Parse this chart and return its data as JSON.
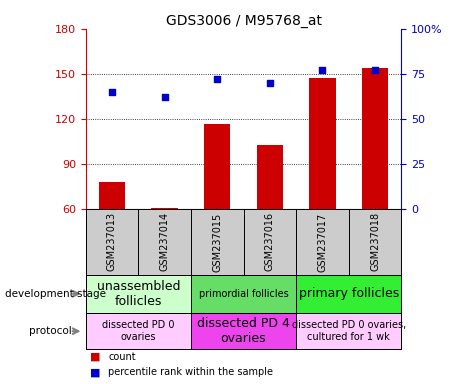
{
  "title": "GDS3006 / M95768_at",
  "samples": [
    "GSM237013",
    "GSM237014",
    "GSM237015",
    "GSM237016",
    "GSM237017",
    "GSM237018"
  ],
  "bar_values": [
    78,
    61,
    117,
    103,
    147,
    154
  ],
  "dot_values_pct": [
    65,
    62,
    72,
    70,
    77,
    77
  ],
  "bar_color": "#cc0000",
  "dot_color": "#0000cc",
  "ylim_left": [
    60,
    180
  ],
  "ylim_right": [
    0,
    100
  ],
  "yticks_left": [
    60,
    90,
    120,
    150,
    180
  ],
  "yticks_right": [
    0,
    25,
    50,
    75,
    100
  ],
  "ytick_labels_left": [
    "60",
    "90",
    "120",
    "150",
    "180"
  ],
  "ytick_labels_right": [
    "0",
    "25",
    "50",
    "75",
    "100%"
  ],
  "dev_stage_groups": [
    {
      "label": "unassembled\nfollicles",
      "start": 0,
      "end": 2,
      "color": "#ccffcc",
      "fontsize": 9
    },
    {
      "label": "primordial follicles",
      "start": 2,
      "end": 4,
      "color": "#66dd66",
      "fontsize": 7
    },
    {
      "label": "primary follicles",
      "start": 4,
      "end": 6,
      "color": "#33ee33",
      "fontsize": 9
    }
  ],
  "protocol_groups": [
    {
      "label": "dissected PD 0\novaries",
      "start": 0,
      "end": 2,
      "color": "#ffccff",
      "fontsize": 7
    },
    {
      "label": "dissected PD 4\novaries",
      "start": 2,
      "end": 4,
      "color": "#ee44ee",
      "fontsize": 9
    },
    {
      "label": "dissected PD 0 ovaries,\ncultured for 1 wk",
      "start": 4,
      "end": 6,
      "color": "#ffccff",
      "fontsize": 7
    }
  ],
  "legend_count_label": "count",
  "legend_pct_label": "percentile rank within the sample",
  "dev_stage_label": "development stage",
  "protocol_label": "protocol",
  "sample_bg_color": "#cccccc",
  "chart_bg_color": "#ffffff"
}
